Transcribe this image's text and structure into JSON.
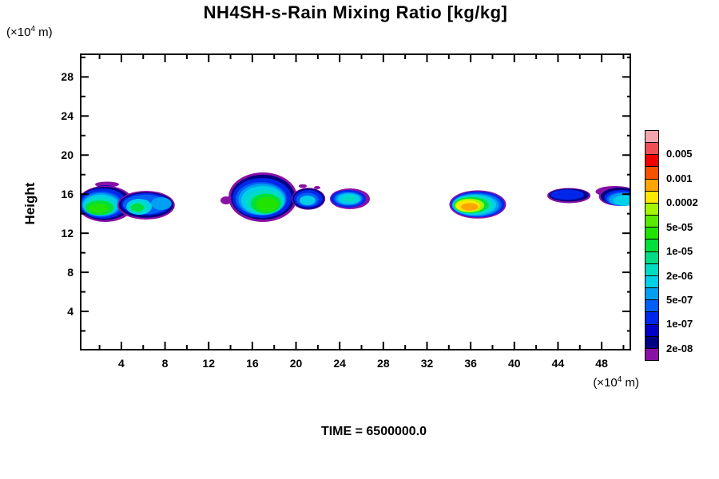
{
  "title": "NH4SH-s-Rain Mixing Ratio [kg/kg]",
  "time_label": "TIME = 6500000.0",
  "axes": {
    "y_name": "Height",
    "units_prefix": "(×10",
    "units_sup": "4",
    "units_suffix": " m)"
  },
  "colorbar": {
    "colors_top_to_bottom": [
      "#f2a6ac",
      "#ee4f54",
      "#f30000",
      "#f65300",
      "#ffa400",
      "#ffe800",
      "#a4f600",
      "#58ea00",
      "#20e400",
      "#00df3a",
      "#00dc85",
      "#00dcc2",
      "#00cfe8",
      "#009ff2",
      "#0060f6",
      "#0026e9",
      "#0000c6",
      "#000083",
      "#8911a5"
    ],
    "labels_top_to_bottom": [
      "0.005",
      "0.001",
      "0.0002",
      "5e-05",
      "1e-05",
      "2e-06",
      "5e-07",
      "1e-07",
      "2e-08"
    ]
  },
  "chart_data": {
    "type": "contour",
    "title": "NH4SH-s-Rain Mixing Ratio [kg/kg]",
    "xlabel": "(×10^4 m)",
    "ylabel": "Height (×10^4 m)",
    "time": "TIME = 6500000.0",
    "x_range": [
      0.2,
      50.7
    ],
    "y_range": [
      0,
      30.4
    ],
    "x_ticks_major": [
      4,
      8,
      12,
      16,
      20,
      24,
      28,
      32,
      36,
      40,
      44,
      48
    ],
    "x_ticks_minor": [
      2,
      6,
      10,
      14,
      18,
      22,
      26,
      30,
      34,
      38,
      42,
      46,
      50
    ],
    "y_ticks_major": [
      4,
      8,
      12,
      16,
      20,
      24,
      28
    ],
    "y_ticks_minor": [
      2,
      6,
      10,
      14,
      18,
      22,
      26,
      30
    ],
    "grid": false,
    "legend_position": "right colorbar",
    "level_boundaries_bottom_to_top": [
      "2e-08",
      "5e-08",
      "1e-07",
      "2e-07",
      "5e-07",
      "1e-06",
      "2e-06",
      "5e-06",
      "1e-05",
      "2e-05",
      "5e-05",
      "1e-04",
      "2e-04",
      "5e-04",
      "0.001",
      "0.002",
      "0.005",
      "0.01"
    ],
    "labeled_levels": [
      "0.005",
      "0.001",
      "0.0002",
      "5e-05",
      "1e-05",
      "2e-06",
      "5e-07",
      "1e-07",
      "2e-08"
    ],
    "blobs": [
      {
        "name": "left-edge-cloud",
        "peak_level": "5e-05",
        "layers": [
          {
            "c": "#8911a5",
            "x": 2.69,
            "y": 17.0,
            "rx": 1.1,
            "ry": 0.29
          },
          {
            "c": "#0000c6",
            "x": 2.54,
            "y": 16.26,
            "rx": 1.32,
            "ry": 0.65
          },
          {
            "c": "#8911a5",
            "x": 2.54,
            "y": 15.0,
            "rx": 2.63,
            "ry": 1.85
          },
          {
            "c": "#000083",
            "x": 2.47,
            "y": 15.05,
            "rx": 2.42,
            "ry": 1.7
          },
          {
            "c": "#0026e9",
            "x": 2.32,
            "y": 15.04,
            "rx": 2.2,
            "ry": 1.55
          },
          {
            "c": "#0060f6",
            "x": 2.18,
            "y": 14.96,
            "rx": 1.9,
            "ry": 1.31
          },
          {
            "c": "#009ff2",
            "x": 2.14,
            "y": 14.92,
            "rx": 1.75,
            "ry": 1.18
          },
          {
            "c": "#00cfe8",
            "x": 2.1,
            "y": 14.87,
            "rx": 1.61,
            "ry": 1.06
          },
          {
            "c": "#00dcc2",
            "x": 2.03,
            "y": 14.79,
            "rx": 1.32,
            "ry": 0.86
          },
          {
            "c": "#00df3a",
            "x": 2.0,
            "y": 14.6,
            "rx": 1.3,
            "ry": 0.75
          },
          {
            "c": "#20e400",
            "x": 1.9,
            "y": 14.55,
            "rx": 0.9,
            "ry": 0.5
          }
        ]
      },
      {
        "name": "cloud-2",
        "peak_level": "1e-05",
        "layers": [
          {
            "c": "#8911a5",
            "x": 6.27,
            "y": 14.87,
            "rx": 2.63,
            "ry": 1.47
          },
          {
            "c": "#000083",
            "x": 6.27,
            "y": 14.9,
            "rx": 2.49,
            "ry": 1.31
          },
          {
            "c": "#0026e9",
            "x": 6.27,
            "y": 14.96,
            "rx": 2.27,
            "ry": 1.14
          },
          {
            "c": "#0060f6",
            "x": 6.2,
            "y": 14.95,
            "rx": 2.05,
            "ry": 1.0
          },
          {
            "c": "#009ff2",
            "x": 7.66,
            "y": 15.04,
            "rx": 0.95,
            "ry": 0.65
          },
          {
            "c": "#00cfe8",
            "x": 5.62,
            "y": 14.71,
            "rx": 1.17,
            "ry": 0.82
          },
          {
            "c": "#00dcc2",
            "x": 5.54,
            "y": 14.67,
            "rx": 0.88,
            "ry": 0.61
          },
          {
            "c": "#00df3a",
            "x": 5.47,
            "y": 14.63,
            "rx": 0.59,
            "ry": 0.41
          }
        ]
      },
      {
        "name": "speck",
        "peak_level": "2e-08",
        "layers": [
          {
            "c": "#8911a5",
            "x": 13.59,
            "y": 15.36,
            "rx": 0.51,
            "ry": 0.41
          }
        ]
      },
      {
        "name": "big-cloud",
        "peak_level": "5e-05",
        "layers": [
          {
            "c": "#8911a5",
            "x": 16.96,
            "y": 15.69,
            "rx": 3.15,
            "ry": 2.53
          },
          {
            "c": "#000083",
            "x": 16.96,
            "y": 15.69,
            "rx": 2.93,
            "ry": 2.29
          },
          {
            "c": "#0026e9",
            "x": 16.89,
            "y": 15.61,
            "rx": 2.71,
            "ry": 2.04
          },
          {
            "c": "#0060f6",
            "x": 16.81,
            "y": 15.53,
            "rx": 2.34,
            "ry": 1.72
          },
          {
            "c": "#009ff2",
            "x": 16.88,
            "y": 15.45,
            "rx": 2.15,
            "ry": 1.6
          },
          {
            "c": "#00cfe8",
            "x": 16.96,
            "y": 15.36,
            "rx": 1.98,
            "ry": 1.47
          },
          {
            "c": "#00dcc2",
            "x": 17.11,
            "y": 15.2,
            "rx": 1.68,
            "ry": 1.23
          },
          {
            "c": "#00df3a",
            "x": 17.25,
            "y": 15.04,
            "rx": 1.39,
            "ry": 1.02
          },
          {
            "c": "#20e400",
            "x": 17.33,
            "y": 14.96,
            "rx": 1.02,
            "ry": 0.78
          }
        ]
      },
      {
        "name": "cloud-4",
        "peak_level": "2e-06",
        "layers": [
          {
            "c": "#8911a5",
            "x": 20.62,
            "y": 16.83,
            "rx": 0.37,
            "ry": 0.2
          },
          {
            "c": "#8911a5",
            "x": 21.94,
            "y": 16.67,
            "rx": 0.29,
            "ry": 0.16
          },
          {
            "c": "#8911a5",
            "x": 21.13,
            "y": 15.53,
            "rx": 1.55,
            "ry": 1.12
          },
          {
            "c": "#000083",
            "x": 21.13,
            "y": 15.53,
            "rx": 1.46,
            "ry": 1.06
          },
          {
            "c": "#0026e9",
            "x": 21.13,
            "y": 15.53,
            "rx": 1.32,
            "ry": 0.9
          },
          {
            "c": "#0060f6",
            "x": 21.06,
            "y": 15.45,
            "rx": 1.02,
            "ry": 0.69
          },
          {
            "c": "#00cfe8",
            "x": 21.06,
            "y": 15.36,
            "rx": 0.73,
            "ry": 0.49
          }
        ]
      },
      {
        "name": "cloud-5",
        "peak_level": "5e-06",
        "layers": [
          {
            "c": "#8911a5",
            "x": 24.94,
            "y": 15.53,
            "rx": 1.83,
            "ry": 1.06
          },
          {
            "c": "#0026e9",
            "x": 24.79,
            "y": 15.53,
            "rx": 1.61,
            "ry": 0.9
          },
          {
            "c": "#0060f6",
            "x": 24.79,
            "y": 15.53,
            "rx": 1.32,
            "ry": 0.72
          },
          {
            "c": "#009ff2",
            "x": 24.82,
            "y": 15.53,
            "rx": 1.17,
            "ry": 0.62
          },
          {
            "c": "#00cfe8",
            "x": 24.86,
            "y": 15.53,
            "rx": 1.02,
            "ry": 0.53
          },
          {
            "c": "#00dcc2",
            "x": 24.94,
            "y": 15.53,
            "rx": 0.59,
            "ry": 0.31
          }
        ]
      },
      {
        "name": "intense-cloud",
        "peak_level": "0.001",
        "layers": [
          {
            "c": "#8911a5",
            "x": 36.65,
            "y": 14.95,
            "rx": 2.6,
            "ry": 1.45
          },
          {
            "c": "#0026e9",
            "x": 36.65,
            "y": 14.95,
            "rx": 2.45,
            "ry": 1.33
          },
          {
            "c": "#0060f6",
            "x": 36.55,
            "y": 14.92,
            "rx": 2.3,
            "ry": 1.22
          },
          {
            "c": "#009ff2",
            "x": 36.45,
            "y": 14.9,
            "rx": 2.15,
            "ry": 1.12
          },
          {
            "c": "#00cfe8",
            "x": 36.35,
            "y": 14.9,
            "rx": 2.0,
            "ry": 1.03
          },
          {
            "c": "#00dcc2",
            "x": 36.2,
            "y": 14.9,
            "rx": 1.82,
            "ry": 0.93
          },
          {
            "c": "#00df3a",
            "x": 36.05,
            "y": 14.88,
            "rx": 1.6,
            "ry": 0.82
          },
          {
            "c": "#a4f600",
            "x": 35.9,
            "y": 14.85,
            "rx": 1.35,
            "ry": 0.7
          },
          {
            "c": "#ffe800",
            "x": 35.75,
            "y": 14.8,
            "rx": 1.1,
            "ry": 0.57
          },
          {
            "c": "#ffa400",
            "x": 35.9,
            "y": 14.7,
            "rx": 0.8,
            "ry": 0.38
          }
        ]
      },
      {
        "name": "flat-cloud",
        "peak_level": "1e-07",
        "layers": [
          {
            "c": "#8911a5",
            "x": 45.0,
            "y": 15.85,
            "rx": 1.98,
            "ry": 0.78
          },
          {
            "c": "#000083",
            "x": 45.0,
            "y": 15.9,
            "rx": 1.83,
            "ry": 0.65
          },
          {
            "c": "#0026e9",
            "x": 44.85,
            "y": 15.94,
            "rx": 1.54,
            "ry": 0.53
          }
        ]
      },
      {
        "name": "right-edge-cloud",
        "peak_level": "2e-06",
        "layers": [
          {
            "c": "#8911a5",
            "x": 49.2,
            "y": 16.26,
            "rx": 1.76,
            "ry": 0.57
          },
          {
            "c": "#8911a5",
            "x": 49.6,
            "y": 15.75,
            "rx": 1.85,
            "ry": 0.95
          },
          {
            "c": "#000083",
            "x": 49.68,
            "y": 15.77,
            "rx": 1.76,
            "ry": 0.9
          },
          {
            "c": "#0026e9",
            "x": 49.82,
            "y": 15.61,
            "rx": 1.61,
            "ry": 0.82
          },
          {
            "c": "#0060f6",
            "x": 49.9,
            "y": 15.5,
            "rx": 1.45,
            "ry": 0.72
          },
          {
            "c": "#009ff2",
            "x": 49.97,
            "y": 15.45,
            "rx": 1.32,
            "ry": 0.65
          },
          {
            "c": "#00cfe8",
            "x": 50.11,
            "y": 15.36,
            "rx": 1.02,
            "ry": 0.53
          }
        ]
      }
    ]
  }
}
